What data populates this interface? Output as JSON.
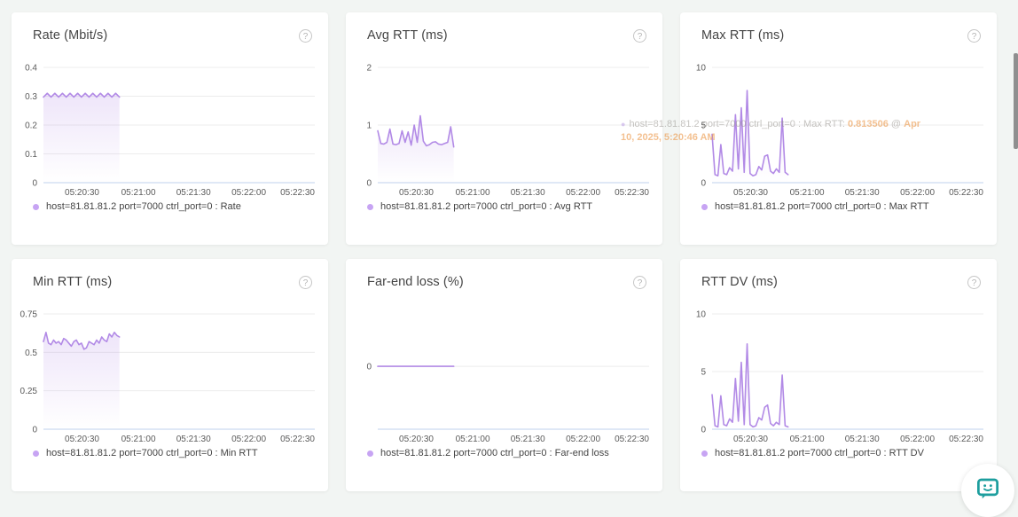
{
  "colors": {
    "series": "#b28ae6",
    "legend_dot": "#c7a4f3",
    "baseline": "#ccd9f0",
    "gridline": "#ececec",
    "background": "#f2f5f3",
    "card": "#ffffff",
    "chat_icon": "#1d9e9e",
    "scrollbar": "#8f8f8f"
  },
  "help_icon_glyph": "?",
  "x_axis": {
    "labels": [
      "05:20:30",
      "05:21:00",
      "05:21:30",
      "05:22:00",
      "05:22:30"
    ]
  },
  "chart_data": [
    {
      "type": "line",
      "title": "Rate (Mbit/s)",
      "legend": "host=81.81.81.2 port=7000 ctrl_port=0 : Rate",
      "ylabel": "Mbit/s",
      "ymin": 0,
      "ymax": 0.4,
      "fill": true,
      "y_ticks": [
        {
          "v": 0,
          "label": "0"
        },
        {
          "v": 0.1,
          "label": "0.1"
        },
        {
          "v": 0.2,
          "label": "0.2"
        },
        {
          "v": 0.3,
          "label": "0.3"
        },
        {
          "v": 0.4,
          "label": "0.4"
        }
      ],
      "values": [
        0.297,
        0.31,
        0.297,
        0.31,
        0.297,
        0.31,
        0.297,
        0.31,
        0.297,
        0.31,
        0.297,
        0.31,
        0.297,
        0.31,
        0.297,
        0.31,
        0.297,
        0.31,
        0.297,
        0.31,
        0.297
      ]
    },
    {
      "type": "line",
      "title": "Avg RTT (ms)",
      "legend": "host=81.81.81.2 port=7000 ctrl_port=0 : Avg RTT",
      "ylabel": "ms",
      "ymin": 0,
      "ymax": 2,
      "fill": true,
      "y_ticks": [
        {
          "v": 0,
          "label": "0"
        },
        {
          "v": 1,
          "label": "1"
        },
        {
          "v": 2,
          "label": "2"
        }
      ],
      "values": [
        0.9,
        0.68,
        0.67,
        0.7,
        0.93,
        0.67,
        0.66,
        0.68,
        0.9,
        0.7,
        0.88,
        0.65,
        1.0,
        0.7,
        1.16,
        0.72,
        0.64,
        0.66,
        0.7,
        0.71,
        0.67,
        0.66,
        0.68,
        0.7,
        0.97,
        0.62
      ]
    },
    {
      "type": "line",
      "title": "Max RTT (ms)",
      "legend": "host=81.81.81.2 port=7000 ctrl_port=0 : Max RTT",
      "ylabel": "ms",
      "ymin": 0,
      "ymax": 10,
      "fill": true,
      "y_ticks": [
        {
          "v": 0,
          "label": "0"
        },
        {
          "v": 5,
          "label": "5"
        },
        {
          "v": 10,
          "label": "10"
        }
      ],
      "values": [
        4.2,
        0.7,
        0.6,
        3.3,
        0.8,
        0.7,
        1.3,
        1.0,
        5.9,
        1.2,
        6.5,
        0.9,
        8.0,
        0.8,
        0.6,
        0.7,
        1.4,
        1.1,
        2.3,
        2.4,
        1.0,
        0.8,
        1.2,
        0.9,
        5.6,
        0.9,
        0.7
      ]
    },
    {
      "type": "line",
      "title": "Min RTT (ms)",
      "legend": "host=81.81.81.2 port=7000 ctrl_port=0 : Min RTT",
      "ylabel": "ms",
      "ymin": 0,
      "ymax": 0.75,
      "fill": true,
      "y_ticks": [
        {
          "v": 0,
          "label": "0"
        },
        {
          "v": 0.25,
          "label": "0.25"
        },
        {
          "v": 0.5,
          "label": "0.5"
        },
        {
          "v": 0.75,
          "label": "0.75"
        }
      ],
      "values": [
        0.57,
        0.63,
        0.56,
        0.55,
        0.58,
        0.56,
        0.57,
        0.55,
        0.59,
        0.58,
        0.56,
        0.54,
        0.57,
        0.58,
        0.55,
        0.56,
        0.52,
        0.53,
        0.57,
        0.56,
        0.55,
        0.58,
        0.56,
        0.6,
        0.58,
        0.57,
        0.62,
        0.6,
        0.63,
        0.61,
        0.6
      ]
    },
    {
      "type": "line",
      "title": "Far-end loss (%)",
      "legend": "host=81.81.81.2 port=7000 ctrl_port=0 : Far-end loss",
      "ylabel": "%",
      "ymin": -1.2,
      "ymax": 1.0,
      "fill": false,
      "y_ticks": [
        {
          "v": 0,
          "label": "0"
        }
      ],
      "values": [
        0,
        0,
        0,
        0,
        0,
        0,
        0,
        0,
        0,
        0,
        0,
        0,
        0,
        0,
        0,
        0,
        0,
        0,
        0,
        0,
        0
      ]
    },
    {
      "type": "line",
      "title": "RTT DV (ms)",
      "legend": "host=81.81.81.2 port=7000 ctrl_port=0 : RTT DV",
      "ylabel": "ms",
      "ymin": 0,
      "ymax": 10,
      "fill": true,
      "y_ticks": [
        {
          "v": 0,
          "label": "0"
        },
        {
          "v": 5,
          "label": "5"
        },
        {
          "v": 10,
          "label": "10"
        }
      ],
      "values": [
        3.0,
        0.3,
        0.2,
        2.9,
        0.4,
        0.3,
        0.9,
        0.6,
        4.4,
        0.7,
        5.8,
        0.4,
        7.4,
        0.4,
        0.2,
        0.3,
        1.0,
        0.8,
        1.9,
        2.1,
        0.5,
        0.3,
        0.6,
        0.4,
        4.7,
        0.3,
        0.2
      ]
    }
  ],
  "ghost_tooltip": {
    "bullet": "●",
    "label": "host=81.81.81.2 port=7000 ctrl_port=0 : Max RTT: ",
    "value": "0.813506",
    "at": " @ ",
    "date": "Apr 10, 2025, 5:20:46 AM"
  }
}
